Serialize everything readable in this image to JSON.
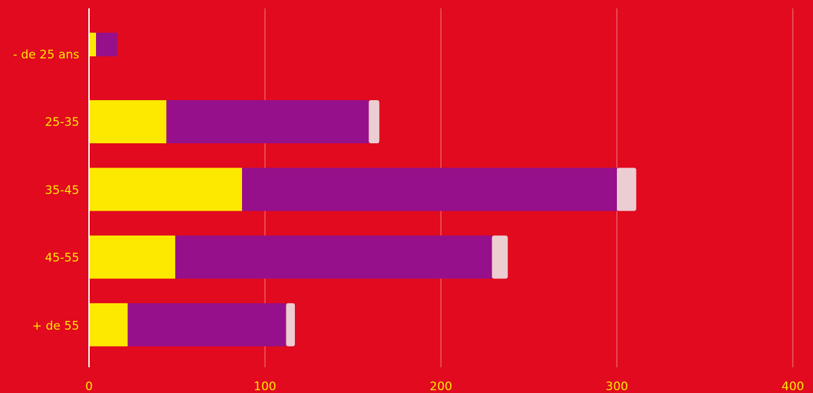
{
  "chart_data": {
    "type": "bar",
    "orientation": "horizontal",
    "stacked": true,
    "categories": [
      "- de 25 ans",
      "25-35",
      "35-45",
      "45-55",
      "+ de 55"
    ],
    "series": [
      {
        "color": "#fde900",
        "values": [
          4,
          44,
          87,
          49,
          22
        ]
      },
      {
        "color": "#96108b",
        "values": [
          12,
          115,
          213,
          180,
          90
        ]
      },
      {
        "color": "#ebcdd2",
        "values": [
          0,
          6,
          11,
          9,
          5
        ]
      }
    ],
    "xlim": [
      0,
      400
    ],
    "xticks": [
      0,
      100,
      200,
      300,
      400
    ],
    "grid": true,
    "colors": {
      "background": "#e10a1e",
      "text": "#fde900",
      "grid": "#f0707a",
      "axis": "#ffffff"
    }
  }
}
